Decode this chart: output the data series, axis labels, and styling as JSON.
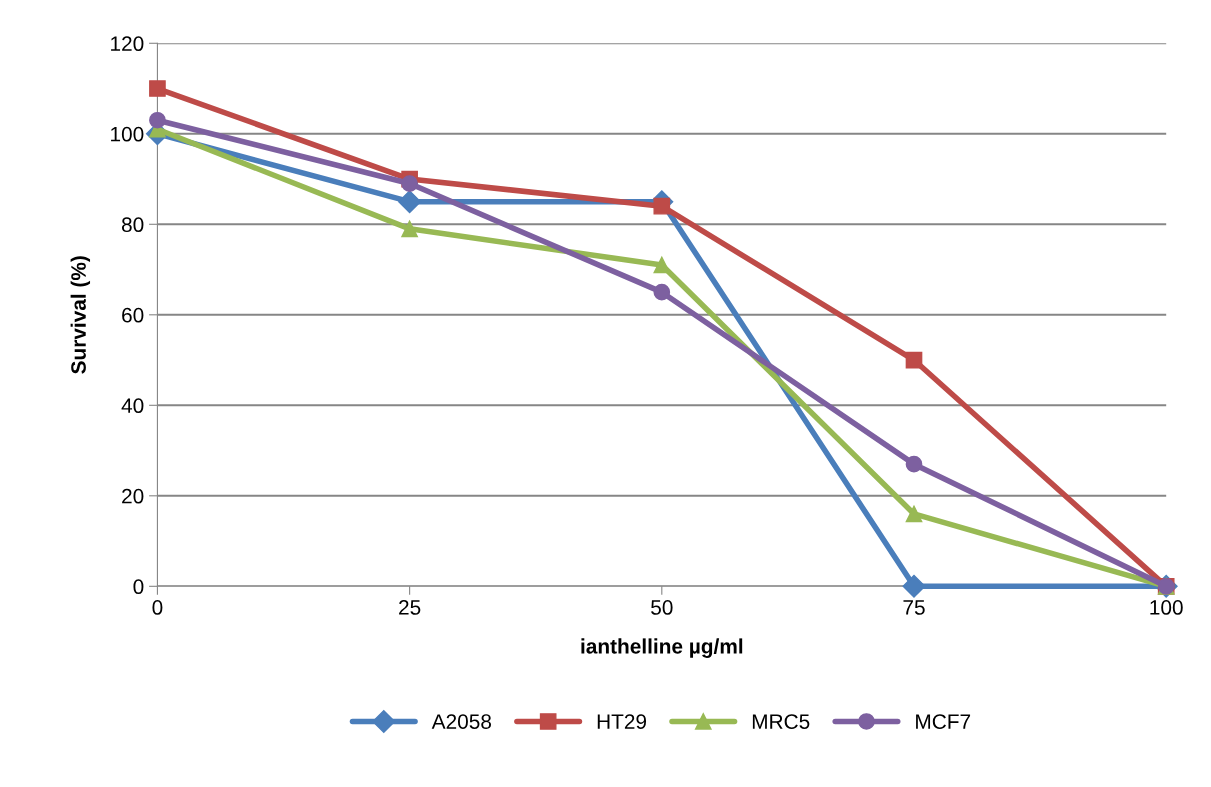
{
  "chart_data": {
    "type": "line",
    "xlabel": "ianthelline µg/ml",
    "ylabel": "Survival (%)",
    "categories": [
      "0",
      "25",
      "50",
      "75",
      "100"
    ],
    "series": [
      {
        "name": "A2058",
        "color": "#4a7ebb",
        "marker": "diamond",
        "values": [
          100,
          85,
          85,
          0,
          0
        ]
      },
      {
        "name": "HT29",
        "color": "#be4b48",
        "marker": "square",
        "values": [
          110,
          90,
          84,
          50,
          0
        ]
      },
      {
        "name": "MRC5",
        "color": "#98b954",
        "marker": "triangle",
        "values": [
          101,
          79,
          71,
          16,
          0
        ]
      },
      {
        "name": "MCF7",
        "color": "#7d60a0",
        "marker": "circle",
        "values": [
          103,
          89,
          65,
          27,
          0
        ]
      }
    ],
    "ylim": [
      0,
      120
    ],
    "yticks": [
      0,
      20,
      40,
      60,
      80,
      100,
      120
    ],
    "grid": "y",
    "legend": "bottom",
    "line_style": "solid"
  }
}
